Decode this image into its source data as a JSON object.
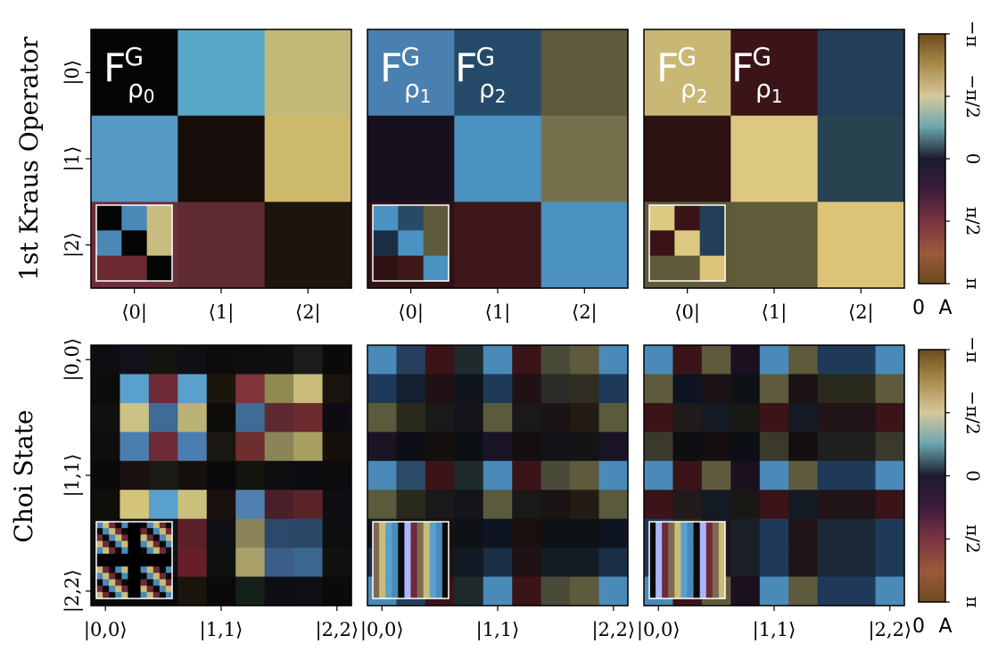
{
  "chart_data": {
    "type": "heatmap",
    "row_labels": [
      "1st Kraus Operator",
      "Choi State"
    ],
    "kraus_tick_labels": {
      "x": [
        "⟨0|",
        "⟨1|",
        "⟨2|"
      ],
      "y": [
        "|0⟩",
        "|1⟩",
        "|2⟩"
      ]
    },
    "choi_tick_labels": {
      "x": [
        "|0,0⟩",
        "|1,1⟩",
        "|2,2⟩"
      ],
      "y": [
        "|0,0⟩",
        "|1,1⟩",
        "|2,2⟩"
      ]
    },
    "panel_labels": [
      {
        "base": "F",
        "sup": "G",
        "sub": "ρ",
        "subsub": "0"
      },
      {
        "base": "F",
        "sup": "G",
        "sub": "ρ",
        "subsub": "1",
        "second": {
          "base": "F",
          "sup": "G",
          "sub": "ρ",
          "subsub": "2"
        }
      },
      {
        "base": "F",
        "sup": "G",
        "sub": "ρ",
        "subsub": "2",
        "second": {
          "base": "F",
          "sup": "G",
          "sub": "ρ",
          "subsub": "1"
        }
      }
    ],
    "colorbar": {
      "tick_labels": [
        "−π",
        "−π/2",
        "0",
        "π/2",
        "π"
      ],
      "bottom_labels": [
        "0",
        "A"
      ]
    },
    "kraus_panels": [
      [
        [
          "#050507",
          "#5aa8c8",
          "#c2b878"
        ],
        [
          "#5599c4",
          "#170d0a",
          "#cdb96b"
        ],
        [
          "#6d2e3a",
          "#5f2a30",
          "#1d140e"
        ]
      ],
      [
        [
          "#4a80b0",
          "#254a69",
          "#5e5a3c"
        ],
        [
          "#17111f",
          "#4b92c1",
          "#76714c"
        ],
        [
          "#301214",
          "#3e1718",
          "#4b92c1"
        ]
      ],
      [
        [
          "#c8b874",
          "#3b1418",
          "#233e58"
        ],
        [
          "#2b1210",
          "#dcc880",
          "#294250"
        ],
        [
          "#605a3a",
          "#615b3b",
          "#dcc477"
        ]
      ]
    ],
    "kraus_insets": [
      [
        [
          "#050505",
          "#4a89b5",
          "#c8bc80"
        ],
        [
          "#4a89b5",
          "#050505",
          "#c8bc80"
        ],
        [
          "#6a2a30",
          "#6a2a30",
          "#050505"
        ]
      ],
      [
        [
          "#4a92c1",
          "#274a65",
          "#5e5a3c"
        ],
        [
          "#1a2f45",
          "#4a92c1",
          "#5e5a3c"
        ],
        [
          "#301214",
          "#3e1718",
          "#4b92c1"
        ]
      ],
      [
        [
          "#dcc880",
          "#3b1418",
          "#233e58"
        ],
        [
          "#3b1418",
          "#dcc880",
          "#233e58"
        ],
        [
          "#605a3a",
          "#605a3a",
          "#dcc477"
        ]
      ]
    ],
    "choi_panels": [
      [
        [
          "#0e0e12",
          "#13121a",
          "#12140e",
          "#0e1014",
          "#0c0c0c",
          "#0e0e10",
          "#0e1010",
          "#1c1c1c",
          "#0a0a0a"
        ],
        [
          "#0b0d0a",
          "#5aa0cc",
          "#6e2a36",
          "#5aa0cc",
          "#1a160c",
          "#7e3438",
          "#8e8a52",
          "#c8bc78",
          "#1a140e"
        ],
        [
          "#111110",
          "#cbc284",
          "#3e6c96",
          "#bbb276",
          "#0e0c0a",
          "#3e6c96",
          "#5e2a30",
          "#6a2a2e",
          "#0e0c12"
        ],
        [
          "#0e0e10",
          "#4a7eb0",
          "#6e2a36",
          "#4a7eb0",
          "#1a1610",
          "#6e2e30",
          "#8a8458",
          "#a8a060",
          "#16100a"
        ],
        [
          "#0a0a0a",
          "#1a1010",
          "#1a1a14",
          "#14100e",
          "#0a0a0c",
          "#14140e",
          "#0e0e10",
          "#0a0c10",
          "#0c0c0e"
        ],
        [
          "#0e0e0a",
          "#d4c47a",
          "#5aa0cc",
          "#cbc07c",
          "#1a1010",
          "#5080b0",
          "#4a2028",
          "#5a2428",
          "#0e0e14"
        ],
        [
          "#0e0e10",
          "#101010",
          "#121214",
          "#5a2028",
          "#0e1014",
          "#8a8458",
          "#2c486a",
          "#2c4868",
          "#0e0e10"
        ],
        [
          "#101010",
          "#101010",
          "#101010",
          "#681e28",
          "#0e1210",
          "#a8a068",
          "#3a5e88",
          "#3a6690",
          "#101210"
        ],
        [
          "#0a0a0a",
          "#0a0a0a",
          "#0a0a0a",
          "#1a140c",
          "#0a0a0a",
          "#142018",
          "#0e0e14",
          "#0e1014",
          "#0a0a0a"
        ]
      ],
      [
        [
          "#4a8ab8",
          "#25405c",
          "#3a1418",
          "#1e2a2c",
          "#4a8ab8",
          "#3a1418",
          "#4a4a38",
          "#5e5a3c",
          "#4a8ab8"
        ],
        [
          "#1e3a58",
          "#122030",
          "#201214",
          "#10141c",
          "#1e3a58",
          "#201214",
          "#2a2c28",
          "#302e22",
          "#1e3a58"
        ],
        [
          "#5a5a3c",
          "#2a2a1c",
          "#1a1818",
          "#14141a",
          "#5a5a3c",
          "#1a1818",
          "#1a1414",
          "#221c14",
          "#5a5a3c"
        ],
        [
          "#1a1424",
          "#0e0e16",
          "#141010",
          "#0c1014",
          "#1a1424",
          "#141010",
          "#12141a",
          "#141414",
          "#1a1424"
        ],
        [
          "#4a8ab8",
          "#2a4a68",
          "#3a1418",
          "#1e2a2c",
          "#4a8ab8",
          "#3a1418",
          "#4a4a38",
          "#5e5a3c",
          "#4a8ab8"
        ],
        [
          "#5a5a3c",
          "#2a2a1c",
          "#1a1818",
          "#14141a",
          "#5a5a3c",
          "#1a1818",
          "#1a1414",
          "#221c14",
          "#5a5a3c"
        ],
        [
          "#0e1420",
          "#0e1216",
          "#1a1010",
          "#0e1216",
          "#0e1420",
          "#1a1010",
          "#0e1214",
          "#0e1214",
          "#0e1420"
        ],
        [
          "#1a2e46",
          "#101c28",
          "#201214",
          "#101a24",
          "#1a2e46",
          "#201214",
          "#141c24",
          "#141c24",
          "#1a2e46"
        ],
        [
          "#4a8ab8",
          "#25405c",
          "#3a1418",
          "#1e2a2c",
          "#4a8ab8",
          "#3a1418",
          "#4a4a38",
          "#5e5a3c",
          "#4a8ab8"
        ]
      ],
      [
        [
          "#4a8ab8",
          "#3a1418",
          "#5e5a3c",
          "#1a1020",
          "#4a8ab8",
          "#5e5a3c",
          "#1e3a58",
          "#1e3a58",
          "#4a8ab8"
        ],
        [
          "#5e5a3c",
          "#0e1420",
          "#1a1214",
          "#0e1216",
          "#5e5a3c",
          "#1a1214",
          "#2a2a1c",
          "#2a2a1c",
          "#5e5a3c"
        ],
        [
          "#3a1418",
          "#201a1a",
          "#141a24",
          "#1a1814",
          "#3a1418",
          "#141a24",
          "#201418",
          "#201418",
          "#3a1418"
        ],
        [
          "#3a3a2c",
          "#0c0e12",
          "#140e10",
          "#0c1014",
          "#3a3a2c",
          "#140e10",
          "#202020",
          "#202020",
          "#3a3a2c"
        ],
        [
          "#4a8ab8",
          "#3a1418",
          "#5e5a3c",
          "#1a1020",
          "#4a8ab8",
          "#5e5a3c",
          "#1e3a58",
          "#1e3a58",
          "#4a8ab8"
        ],
        [
          "#3a1418",
          "#201a1a",
          "#141a24",
          "#1a1814",
          "#3a1418",
          "#141a24",
          "#201418",
          "#201418",
          "#3a1418"
        ],
        [
          "#1e3a58",
          "#2a2a1c",
          "#201418",
          "#1a1e26",
          "#1e3a58",
          "#201418",
          "#1a2838",
          "#1a2838",
          "#1e3a58"
        ],
        [
          "#1e3a58",
          "#2a2a1c",
          "#201418",
          "#1a1e26",
          "#1e3a58",
          "#201418",
          "#1a2838",
          "#1a2838",
          "#1e3a58"
        ],
        [
          "#4a8ab8",
          "#3a1418",
          "#5e5a3c",
          "#1a1020",
          "#4a8ab8",
          "#5e5a3c",
          "#1e3a58",
          "#1e3a58",
          "#4a8ab8"
        ]
      ]
    ],
    "choi_inset_colors": [
      "#4a8ab8",
      "#c8bc78",
      "#6e2a36",
      "#0a0a0a",
      "#5aa0cc",
      "#7e6a50",
      "#aab4ff"
    ]
  }
}
